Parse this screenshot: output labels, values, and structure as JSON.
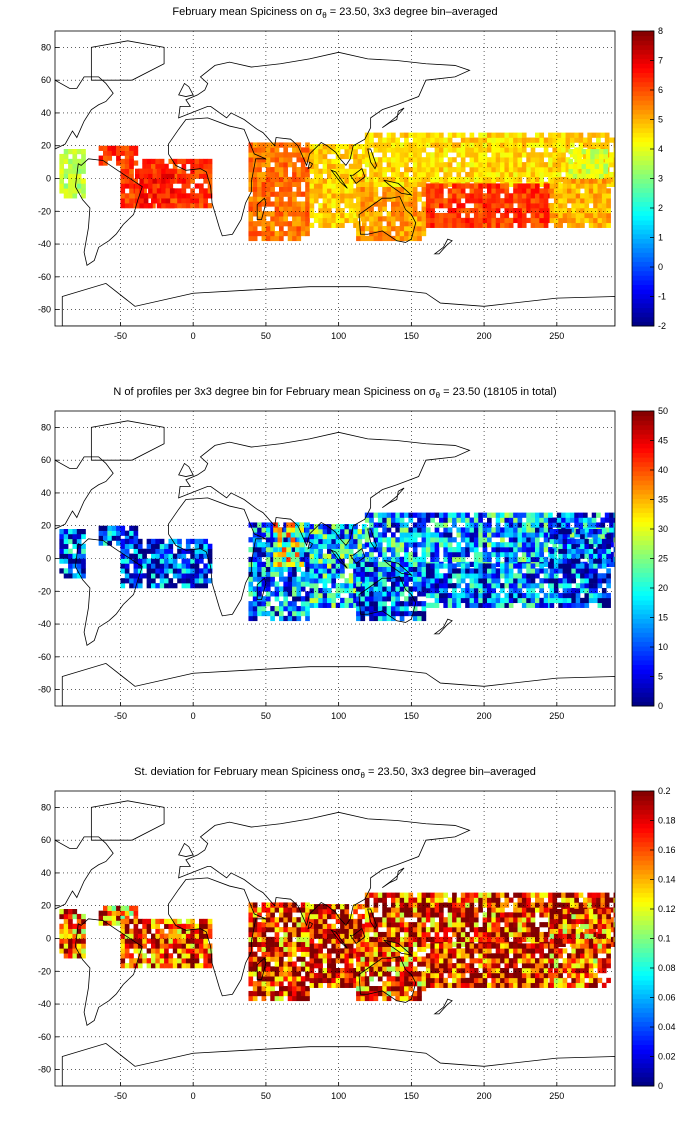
{
  "chart_data": [
    {
      "type": "heatmap",
      "title": {
        "pre": "February mean Spiciness on ",
        "sym": "σ",
        "sub": "θ",
        "post": " = 23.50, 3x3 degree bin–averaged"
      },
      "xlim": [
        -95,
        290
      ],
      "ylim": [
        -90,
        90
      ],
      "xticks": [
        -50,
        0,
        50,
        100,
        150,
        200,
        250
      ],
      "yticks": [
        -80,
        -60,
        -40,
        -20,
        0,
        20,
        40,
        60,
        80
      ],
      "grid": true,
      "colorbar": {
        "range": [
          -2,
          8
        ],
        "ticks": [
          -2,
          -1,
          0,
          1,
          2,
          3,
          4,
          5,
          6,
          7,
          8
        ]
      },
      "regions": [
        {
          "lon": [
            -92,
            -75
          ],
          "lat": [
            -12,
            18
          ],
          "value": 3.5
        },
        {
          "lon": [
            -65,
            -40
          ],
          "lat": [
            8,
            20
          ],
          "value": 6.3
        },
        {
          "lon": [
            -50,
            12
          ],
          "lat": [
            -18,
            12
          ],
          "value": 6.2
        },
        {
          "lon": [
            -40,
            -15
          ],
          "lat": [
            -18,
            5
          ],
          "value": 6.6
        },
        {
          "lon": [
            38,
            80
          ],
          "lat": [
            -38,
            22
          ],
          "value": 5.6
        },
        {
          "lon": [
            80,
            118
          ],
          "lat": [
            -30,
            20
          ],
          "value": 4.7
        },
        {
          "lon": [
            112,
            160
          ],
          "lat": [
            -38,
            0
          ],
          "value": 5.2
        },
        {
          "lon": [
            118,
            290
          ],
          "lat": [
            -5,
            28
          ],
          "value": 4.6
        },
        {
          "lon": [
            160,
            245
          ],
          "lat": [
            -30,
            -5
          ],
          "value": 6.2
        },
        {
          "lon": [
            245,
            285
          ],
          "lat": [
            -30,
            0
          ],
          "value": 5.0
        },
        {
          "lon": [
            258,
            285
          ],
          "lat": [
            0,
            18
          ],
          "value": 3.8
        }
      ],
      "noise": 0.6
    },
    {
      "type": "heatmap",
      "title": {
        "pre": "N of profiles per 3x3 degree bin for February mean Spiciness on ",
        "sym": "σ",
        "sub": "θ",
        "post": " = 23.50 (18105 in total)"
      },
      "xlim": [
        -95,
        290
      ],
      "ylim": [
        -90,
        90
      ],
      "xticks": [
        -50,
        0,
        50,
        100,
        150,
        200,
        250
      ],
      "yticks": [
        -80,
        -60,
        -40,
        -20,
        0,
        20,
        40,
        60,
        80
      ],
      "grid": true,
      "colorbar": {
        "range": [
          0,
          50
        ],
        "ticks": [
          0,
          5,
          10,
          15,
          20,
          25,
          30,
          35,
          40,
          45,
          50
        ]
      },
      "regions": [
        {
          "lon": [
            -92,
            -75
          ],
          "lat": [
            -12,
            18
          ],
          "value": 10
        },
        {
          "lon": [
            -65,
            -40
          ],
          "lat": [
            8,
            20
          ],
          "value": 9
        },
        {
          "lon": [
            -50,
            12
          ],
          "lat": [
            -18,
            12
          ],
          "value": 8
        },
        {
          "lon": [
            38,
            80
          ],
          "lat": [
            -38,
            22
          ],
          "value": 12
        },
        {
          "lon": [
            55,
            75
          ],
          "lat": [
            -5,
            20
          ],
          "value": 28
        },
        {
          "lon": [
            80,
            118
          ],
          "lat": [
            -30,
            20
          ],
          "value": 16
        },
        {
          "lon": [
            112,
            160
          ],
          "lat": [
            -38,
            0
          ],
          "value": 10
        },
        {
          "lon": [
            118,
            290
          ],
          "lat": [
            -5,
            28
          ],
          "value": 14
        },
        {
          "lon": [
            160,
            245
          ],
          "lat": [
            -30,
            -5
          ],
          "value": 11
        },
        {
          "lon": [
            245,
            285
          ],
          "lat": [
            -30,
            18
          ],
          "value": 9
        }
      ],
      "noise": 14
    },
    {
      "type": "heatmap",
      "title": {
        "pre": "St. deviation for February mean Spiciness on",
        "sym": "σ",
        "sub": "θ",
        "post": " = 23.50, 3x3 degree bin–averaged"
      },
      "xlim": [
        -95,
        290
      ],
      "ylim": [
        -90,
        90
      ],
      "xticks": [
        -50,
        0,
        50,
        100,
        150,
        200,
        250
      ],
      "yticks": [
        -80,
        -60,
        -40,
        -20,
        0,
        20,
        40,
        60,
        80
      ],
      "grid": true,
      "colorbar": {
        "range": [
          0,
          0.2
        ],
        "ticks": [
          0,
          0.02,
          0.04,
          0.06,
          0.08,
          0.1,
          0.12,
          0.14,
          0.16,
          0.18,
          0.2
        ]
      },
      "regions": [
        {
          "lon": [
            -92,
            -75
          ],
          "lat": [
            -12,
            18
          ],
          "value": 0.16
        },
        {
          "lon": [
            -65,
            -40
          ],
          "lat": [
            8,
            20
          ],
          "value": 0.15
        },
        {
          "lon": [
            -50,
            12
          ],
          "lat": [
            -18,
            12
          ],
          "value": 0.17
        },
        {
          "lon": [
            38,
            80
          ],
          "lat": [
            -38,
            22
          ],
          "value": 0.17
        },
        {
          "lon": [
            80,
            118
          ],
          "lat": [
            -30,
            20
          ],
          "value": 0.18
        },
        {
          "lon": [
            112,
            160
          ],
          "lat": [
            -38,
            0
          ],
          "value": 0.16
        },
        {
          "lon": [
            118,
            290
          ],
          "lat": [
            -5,
            28
          ],
          "value": 0.17
        },
        {
          "lon": [
            160,
            245
          ],
          "lat": [
            -30,
            -5
          ],
          "value": 0.18
        },
        {
          "lon": [
            245,
            285
          ],
          "lat": [
            -30,
            18
          ],
          "value": 0.16
        }
      ],
      "noise": 0.06
    }
  ]
}
